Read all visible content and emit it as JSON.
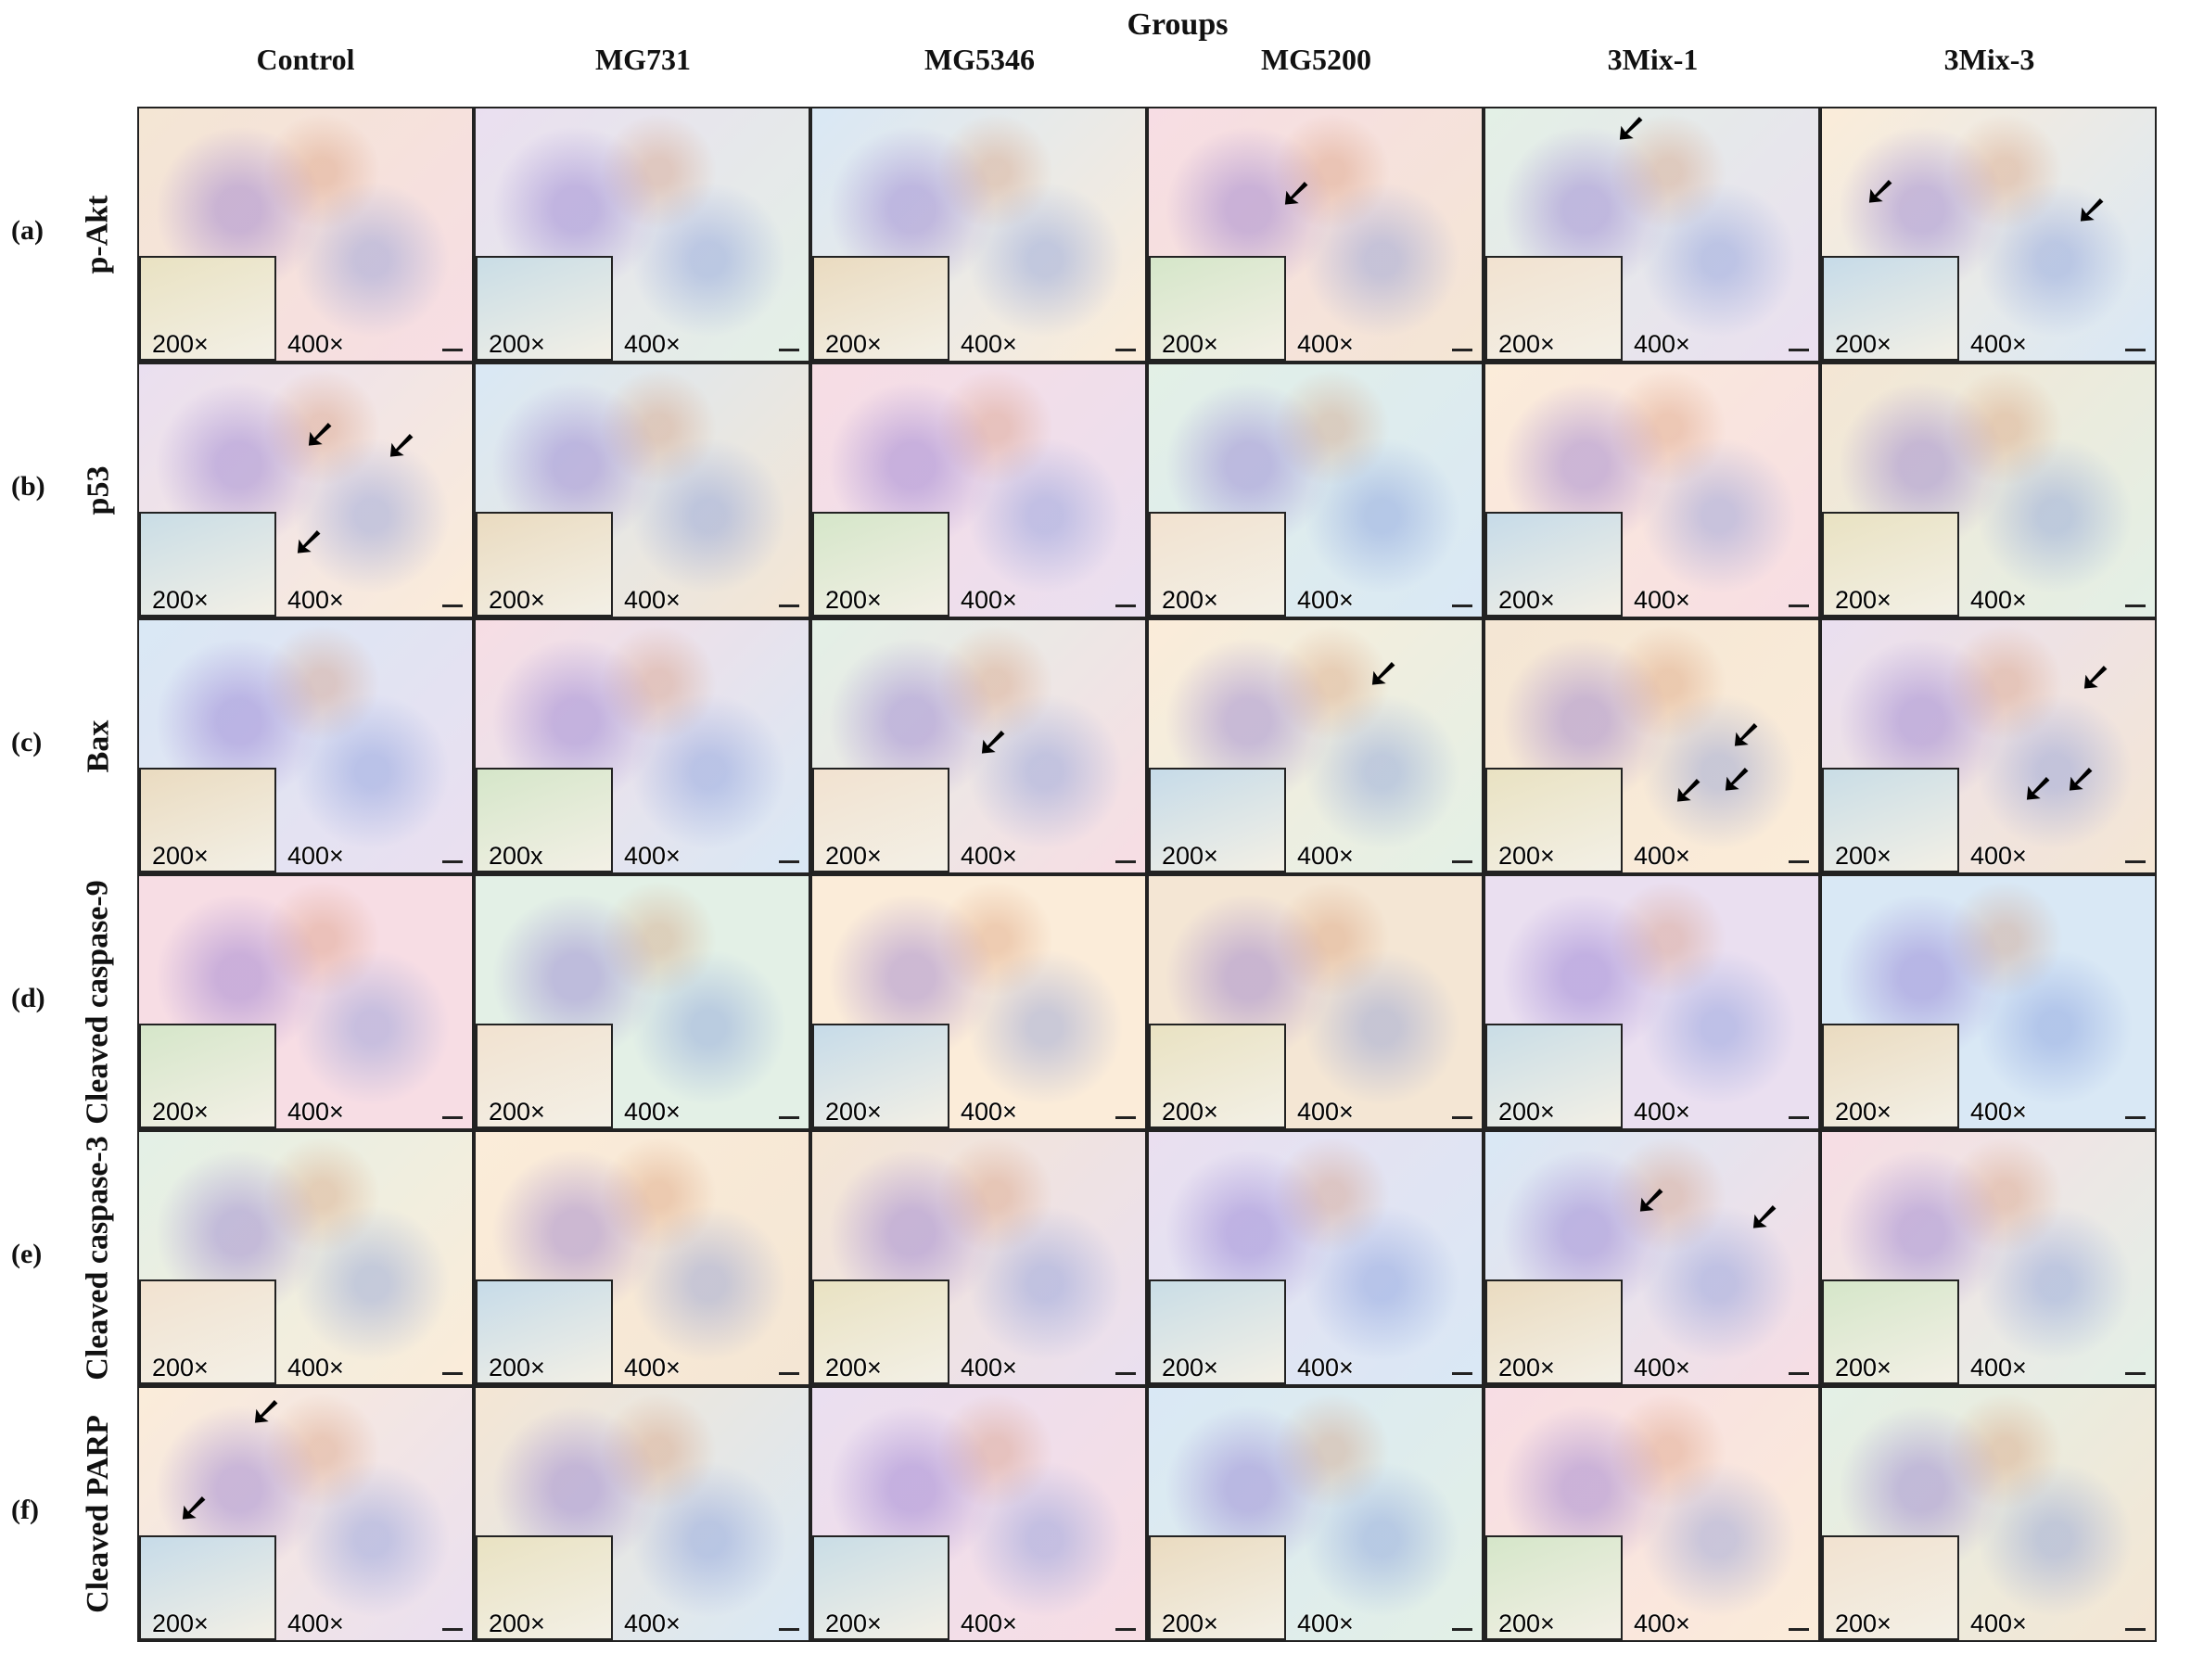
{
  "figure": {
    "groups_title": "Groups",
    "columns": [
      "Control",
      "MG731",
      "MG5346",
      "MG5200",
      "3Mix-1",
      "3Mix-3"
    ],
    "rows": [
      {
        "letter": "(a)",
        "marker": "p-Akt"
      },
      {
        "letter": "(b)",
        "marker": "p53"
      },
      {
        "letter": "(c)",
        "marker": "Bax"
      },
      {
        "letter": "(d)",
        "marker": "Cleaved caspase-9"
      },
      {
        "letter": "(e)",
        "marker": "Cleaved caspase-3"
      },
      {
        "letter": "(f)",
        "marker": "Cleaved PARP"
      }
    ],
    "low_magnification": "200×",
    "low_magnification_alt": "200x",
    "high_magnification": "400×",
    "arrow_glyph": "➘"
  },
  "colors": {
    "border": "#222222",
    "text": "#111111",
    "tints": [
      "#f4e6d4",
      "#eadff0",
      "#d9e8f5",
      "#f7dde4",
      "#e3f0e6",
      "#fbecd9"
    ]
  }
}
